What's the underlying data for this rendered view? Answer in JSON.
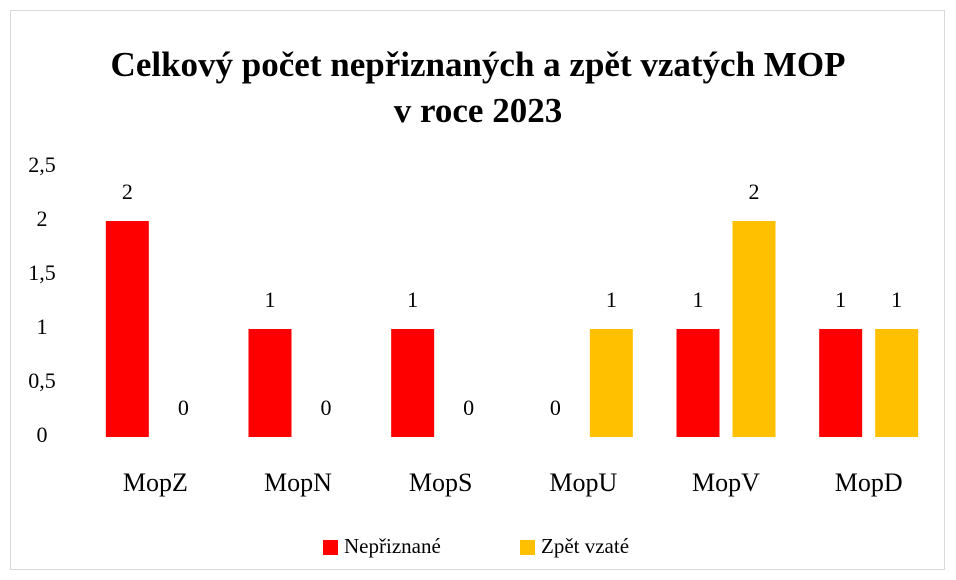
{
  "chart_data": {
    "type": "bar",
    "title": "Celkový počet nepřiznaných a zpět vzatých MOP v roce 2023",
    "categories": [
      "MopZ",
      "MopN",
      "MopS",
      "MopU",
      "MopV",
      "MopD"
    ],
    "series": [
      {
        "name": "Nepřiznané",
        "color": "#ff0000",
        "values": [
          2,
          1,
          1,
          0,
          1,
          1
        ]
      },
      {
        "name": "Zpět vzaté",
        "color": "#ffc000",
        "values": [
          0,
          0,
          0,
          1,
          2,
          1
        ]
      }
    ],
    "ylim": [
      0,
      2.5
    ],
    "yticks": [
      0,
      {
        "value": 0.5,
        "label": "0,5"
      },
      1,
      {
        "value": 1.5,
        "label": "1,5"
      },
      2,
      {
        "value": 2.5,
        "label": "2,5"
      }
    ],
    "grid": false,
    "legend": "bottom"
  }
}
